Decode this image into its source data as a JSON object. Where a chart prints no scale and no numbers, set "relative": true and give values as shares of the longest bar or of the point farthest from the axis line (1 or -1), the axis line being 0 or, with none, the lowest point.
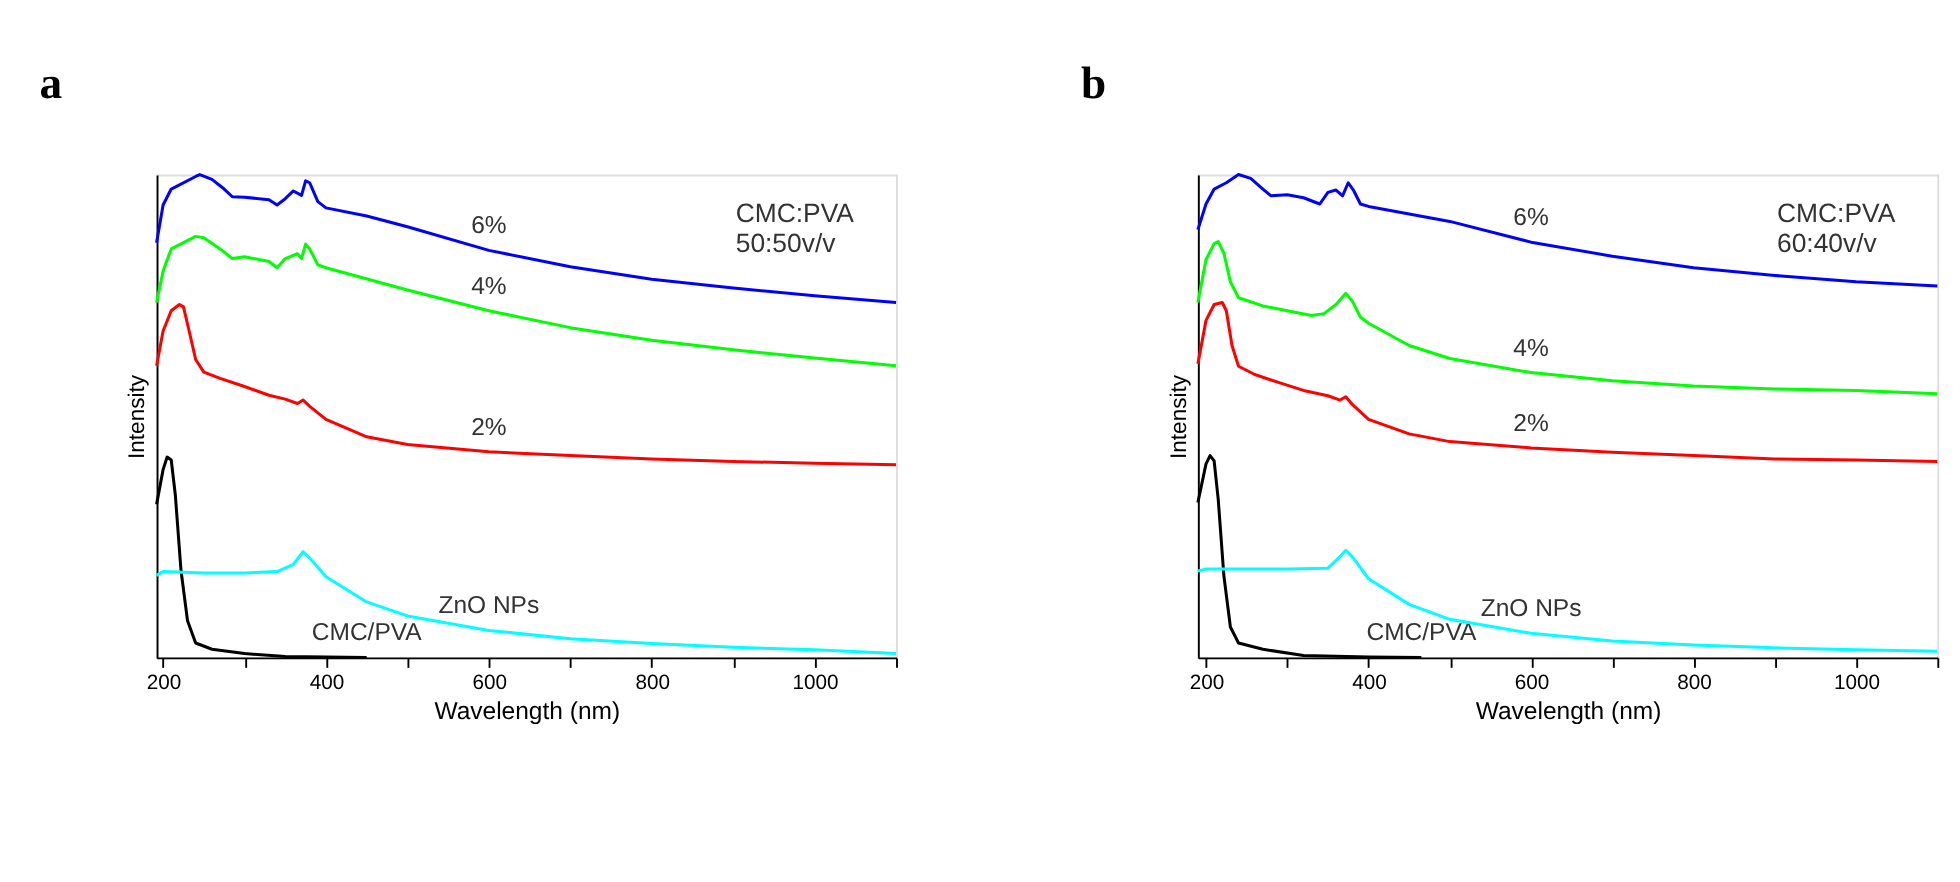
{
  "chart_data": [
    {
      "type": "line",
      "title": "a",
      "xlabel": "Wavelength (nm)",
      "ylabel": "Intensity",
      "relative": true,
      "xlim": [
        192,
        1100
      ],
      "xticks": [
        200,
        {
          "value": 300,
          "label": null
        },
        400,
        {
          "value": 500,
          "label": null
        },
        600,
        {
          "value": 700,
          "label": null
        },
        800,
        {
          "value": 900,
          "label": null
        },
        1000,
        {
          "value": 1100,
          "label": null
        }
      ],
      "grid": false,
      "legend": false,
      "marker": "none",
      "line_style": "solid",
      "series": [
        {
          "name": "6%",
          "color": "#0000ff",
          "x": [
            192,
            200,
            210,
            240,
            245,
            260,
            275,
            285,
            300,
            330,
            340,
            350,
            360,
            370,
            375,
            380,
            390,
            400,
            450,
            500,
            600,
            700,
            800,
            900,
            1000,
            1100
          ],
          "values": [
            0.859,
            0.937,
            0.97,
            0.996,
            1.0,
            0.99,
            0.97,
            0.954,
            0.953,
            0.948,
            0.937,
            0.95,
            0.966,
            0.957,
            0.987,
            0.983,
            0.944,
            0.931,
            0.914,
            0.892,
            0.843,
            0.809,
            0.783,
            0.765,
            0.749,
            0.735
          ]
        },
        {
          "name": "4%",
          "color": "#00ff00",
          "x": [
            192,
            200,
            210,
            240,
            250,
            270,
            285,
            300,
            330,
            340,
            350,
            365,
            370,
            375,
            380,
            390,
            400,
            500,
            600,
            700,
            800,
            900,
            1000,
            1100
          ],
          "values": [
            0.735,
            0.8,
            0.846,
            0.872,
            0.869,
            0.846,
            0.826,
            0.83,
            0.82,
            0.807,
            0.826,
            0.836,
            0.826,
            0.856,
            0.846,
            0.813,
            0.807,
            0.761,
            0.718,
            0.683,
            0.657,
            0.637,
            0.62,
            0.604
          ]
        },
        {
          "name": "2%",
          "color": "#ff0000",
          "x": [
            192,
            200,
            210,
            220,
            225,
            232,
            240,
            250,
            270,
            300,
            330,
            350,
            365,
            372,
            380,
            400,
            450,
            500,
            600,
            700,
            800,
            900,
            1000,
            1100
          ],
          "values": [
            0.604,
            0.676,
            0.718,
            0.731,
            0.726,
            0.676,
            0.617,
            0.591,
            0.578,
            0.561,
            0.543,
            0.535,
            0.526,
            0.533,
            0.52,
            0.493,
            0.457,
            0.441,
            0.426,
            0.418,
            0.411,
            0.406,
            0.402,
            0.399
          ]
        },
        {
          "name": "CMC/PVA",
          "color": "#000000",
          "x": [
            192,
            200,
            205,
            210,
            215,
            222,
            230,
            240,
            260,
            300,
            350,
            450
          ],
          "values": [
            0.317,
            0.389,
            0.415,
            0.409,
            0.337,
            0.18,
            0.076,
            0.03,
            0.017,
            0.008,
            0.002,
            0
          ]
        },
        {
          "name": "ZnO NPs",
          "color": "#00ffff",
          "x": [
            192,
            200,
            250,
            300,
            340,
            360,
            372,
            380,
            400,
            450,
            500,
            600,
            700,
            800,
            900,
            1000,
            1100
          ],
          "values": [
            0.17,
            0.178,
            0.175,
            0.175,
            0.178,
            0.193,
            0.219,
            0.206,
            0.167,
            0.115,
            0.086,
            0.056,
            0.039,
            0.029,
            0.021,
            0.016,
            0.008
          ]
        }
      ],
      "annotations": [
        "CMC:PVA\n50:50v/v"
      ]
    },
    {
      "type": "line",
      "title": "b",
      "xlabel": "Wavelength (nm)",
      "ylabel": "Intensity",
      "relative": true,
      "xlim": [
        190,
        1100
      ],
      "xticks": [
        200,
        {
          "value": 300,
          "label": null
        },
        400,
        {
          "value": 500,
          "label": null
        },
        600,
        {
          "value": 700,
          "label": null
        },
        800,
        {
          "value": 900,
          "label": null
        },
        1000,
        {
          "value": 1100,
          "label": null
        }
      ],
      "grid": false,
      "legend": false,
      "marker": "none",
      "line_style": "solid",
      "series": [
        {
          "name": "6%",
          "color": "#0000ff",
          "x": [
            190,
            200,
            210,
            225,
            240,
            255,
            270,
            280,
            300,
            320,
            340,
            350,
            360,
            368,
            375,
            382,
            390,
            400,
            500,
            600,
            700,
            800,
            900,
            1000,
            1100
          ],
          "values": [
            0.886,
            0.939,
            0.97,
            0.983,
            1.0,
            0.992,
            0.97,
            0.956,
            0.958,
            0.952,
            0.939,
            0.963,
            0.968,
            0.956,
            0.983,
            0.966,
            0.939,
            0.934,
            0.903,
            0.86,
            0.831,
            0.807,
            0.791,
            0.778,
            0.769
          ]
        },
        {
          "name": "4%",
          "color": "#00ff00",
          "x": [
            190,
            200,
            210,
            215,
            222,
            230,
            240,
            270,
            300,
            330,
            345,
            360,
            372,
            380,
            390,
            400,
            450,
            500,
            600,
            700,
            800,
            900,
            1000,
            1100
          ],
          "values": [
            0.735,
            0.824,
            0.857,
            0.861,
            0.837,
            0.778,
            0.745,
            0.728,
            0.718,
            0.708,
            0.712,
            0.731,
            0.754,
            0.738,
            0.705,
            0.692,
            0.646,
            0.619,
            0.59,
            0.573,
            0.562,
            0.556,
            0.553,
            0.546
          ]
        },
        {
          "name": "2%",
          "color": "#ff0000",
          "x": [
            190,
            200,
            210,
            220,
            225,
            232,
            240,
            260,
            290,
            320,
            350,
            365,
            372,
            380,
            400,
            450,
            500,
            600,
            700,
            800,
            900,
            1000,
            1100
          ],
          "values": [
            0.608,
            0.698,
            0.731,
            0.735,
            0.718,
            0.646,
            0.603,
            0.586,
            0.569,
            0.553,
            0.542,
            0.533,
            0.54,
            0.524,
            0.493,
            0.463,
            0.447,
            0.434,
            0.425,
            0.418,
            0.411,
            0.409,
            0.406
          ]
        },
        {
          "name": "CMC/PVA",
          "color": "#000000",
          "x": [
            190,
            200,
            205,
            210,
            215,
            222,
            230,
            240,
            270,
            320,
            400,
            465
          ],
          "values": [
            0.321,
            0.401,
            0.418,
            0.407,
            0.328,
            0.169,
            0.063,
            0.03,
            0.017,
            0.004,
            0.001,
            0
          ]
        },
        {
          "name": "ZnO NPs",
          "color": "#00ffff",
          "x": [
            190,
            200,
            300,
            350,
            365,
            372,
            380,
            400,
            450,
            500,
            600,
            700,
            800,
            900,
            1000,
            1100
          ],
          "values": [
            0.179,
            0.183,
            0.183,
            0.185,
            0.209,
            0.222,
            0.209,
            0.163,
            0.11,
            0.079,
            0.05,
            0.034,
            0.026,
            0.02,
            0.016,
            0.013
          ]
        }
      ],
      "annotations": [
        "CMC:PVA\n60:40v/v"
      ]
    }
  ]
}
